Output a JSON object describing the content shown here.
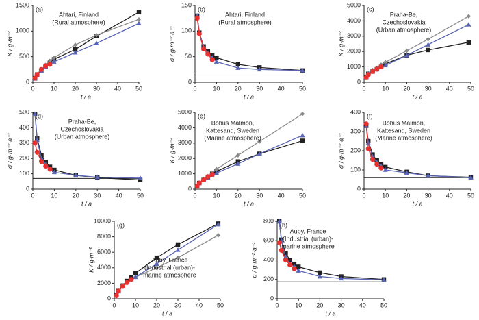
{
  "chart_data": [
    {
      "type": "line",
      "panel": "(a)",
      "annotation": [
        "Ahtari, Finland",
        "(Rural atmosphere)"
      ],
      "ylabel": "K / g·m⁻²",
      "xlabel": "t / a",
      "xlim": [
        0,
        50
      ],
      "xticks": [
        0,
        10,
        20,
        30,
        40,
        50
      ],
      "ylim": [
        0,
        1500
      ],
      "yticks": [
        0,
        500,
        1000,
        1500
      ],
      "series": [
        {
          "color": "#222222",
          "marker": "square",
          "x": [
            1,
            2,
            4,
            6,
            8,
            10,
            20,
            30,
            50
          ],
          "values": [
            80,
            150,
            230,
            310,
            380,
            450,
            640,
            900,
            1370
          ]
        },
        {
          "color": "#8a8a8a",
          "marker": "diamond",
          "x": [
            1,
            2,
            4,
            6,
            8,
            10,
            20,
            30,
            50
          ],
          "values": [
            80,
            160,
            250,
            340,
            420,
            480,
            730,
            920,
            1230
          ]
        },
        {
          "color": "#5a64b4",
          "marker": "triangle",
          "x": [
            1,
            2,
            4,
            6,
            8,
            10,
            20,
            30,
            50
          ],
          "values": [
            70,
            140,
            220,
            300,
            360,
            400,
            580,
            760,
            1150
          ]
        },
        {
          "color": "#e8312f",
          "marker": "circle",
          "x": [
            1,
            2,
            4,
            6,
            8
          ],
          "values": [
            80,
            150,
            250,
            320,
            350
          ]
        }
      ]
    },
    {
      "type": "line",
      "panel": "(b)",
      "annotation": [
        "Ahtari, Finland",
        "(Rural atmosphere)"
      ],
      "ylabel": "σ / g·m⁻²·a⁻¹",
      "xlabel": "t / a",
      "xlim": [
        0,
        50
      ],
      "xticks": [
        0,
        10,
        20,
        30,
        40,
        50
      ],
      "ylim": [
        0,
        150
      ],
      "yticks": [
        0,
        50,
        100,
        150
      ],
      "hline": 18,
      "series": [
        {
          "color": "#222222",
          "marker": "square",
          "x": [
            1,
            2,
            4,
            6,
            8,
            10,
            20,
            30,
            50
          ],
          "values": [
            130,
            97,
            70,
            60,
            52,
            48,
            35,
            29,
            23
          ]
        },
        {
          "color": "#5a64b4",
          "marker": "triangle",
          "x": [
            1,
            2,
            4,
            6,
            8,
            10,
            20,
            30,
            50
          ],
          "values": [
            130,
            97,
            68,
            57,
            48,
            40,
            28,
            25,
            23
          ]
        },
        {
          "color": "#e8312f",
          "marker": "circle",
          "x": [
            1,
            2,
            4,
            6,
            8
          ],
          "values": [
            125,
            95,
            65,
            55,
            44
          ]
        }
      ]
    },
    {
      "type": "line",
      "panel": "(c)",
      "annotation": [
        "Praha-Be,",
        "Czechoslovakia",
        "(Urban atmosphere)"
      ],
      "ylabel": "K / g·m⁻²",
      "xlabel": "t / a",
      "xlim": [
        0,
        50
      ],
      "xticks": [
        0,
        10,
        20,
        30,
        40,
        50
      ],
      "ylim": [
        0,
        5000
      ],
      "yticks": [
        0,
        1000,
        2000,
        3000,
        4000,
        5000
      ],
      "series": [
        {
          "color": "#222222",
          "marker": "square",
          "x": [
            1,
            2,
            4,
            6,
            8,
            10,
            20,
            30,
            49
          ],
          "values": [
            300,
            550,
            700,
            850,
            1000,
            1200,
            1750,
            2100,
            2600
          ]
        },
        {
          "color": "#8a8a8a",
          "marker": "diamond",
          "x": [
            1,
            2,
            4,
            6,
            8,
            10,
            20,
            30,
            49
          ],
          "values": [
            350,
            600,
            800,
            950,
            1150,
            1300,
            2050,
            2800,
            4300
          ]
        },
        {
          "color": "#5a64b4",
          "marker": "triangle",
          "x": [
            1,
            2,
            4,
            6,
            8,
            10,
            20,
            30,
            49
          ],
          "values": [
            300,
            550,
            720,
            880,
            1000,
            1100,
            1750,
            2450,
            3750
          ]
        },
        {
          "color": "#e8312f",
          "marker": "circle",
          "x": [
            1,
            2,
            4,
            6,
            8
          ],
          "values": [
            300,
            500,
            700,
            850,
            1000
          ]
        }
      ]
    },
    {
      "type": "line",
      "panel": "(d)",
      "annotation": [
        "Praha-Be,",
        "Czechoslovakia",
        "(Urban atmosphere)"
      ],
      "ylabel": "σ / g·m⁻²·a⁻¹",
      "xlabel": "t / a",
      "xlim": [
        0,
        50
      ],
      "xticks": [
        0,
        10,
        20,
        30,
        40,
        50
      ],
      "ylim": [
        0,
        500
      ],
      "yticks": [
        0,
        100,
        200,
        300,
        400,
        500
      ],
      "hline": 70,
      "series": [
        {
          "color": "#222222",
          "marker": "square",
          "x": [
            1,
            2,
            4,
            6,
            8,
            10,
            20,
            30,
            50
          ],
          "values": [
            490,
            330,
            220,
            175,
            145,
            125,
            90,
            75,
            60
          ]
        },
        {
          "color": "#5a64b4",
          "marker": "triangle",
          "x": [
            1,
            2,
            4,
            6,
            8,
            10,
            20,
            30,
            50
          ],
          "values": [
            490,
            320,
            200,
            160,
            130,
            110,
            90,
            78,
            72
          ]
        },
        {
          "color": "#e8312f",
          "marker": "circle",
          "x": [
            1,
            2,
            4,
            6,
            8
          ],
          "values": [
            300,
            240,
            180,
            150,
            130
          ]
        }
      ]
    },
    {
      "type": "line",
      "panel": "(e)",
      "annotation": [
        "Bohus Malmon,",
        "Kattesand, Sweden",
        "(Marine atmosphere)"
      ],
      "ylabel": "K / g·m⁻²",
      "xlabel": "t / a",
      "xlim": [
        0,
        50
      ],
      "xticks": [
        0,
        10,
        20,
        30,
        40,
        50
      ],
      "ylim": [
        0,
        5000
      ],
      "yticks": [
        0,
        1000,
        2000,
        3000,
        4000,
        5000
      ],
      "series": [
        {
          "color": "#222222",
          "marker": "square",
          "x": [
            1,
            2,
            4,
            6,
            8,
            10,
            20,
            30,
            50
          ],
          "values": [
            200,
            400,
            600,
            800,
            1000,
            1150,
            1800,
            2300,
            3150
          ]
        },
        {
          "color": "#8a8a8a",
          "marker": "diamond",
          "x": [
            1,
            2,
            4,
            6,
            8,
            10,
            20,
            30,
            50
          ],
          "values": [
            220,
            420,
            650,
            850,
            1050,
            1300,
            2200,
            3100,
            4900
          ]
        },
        {
          "color": "#5a64b4",
          "marker": "triangle",
          "x": [
            1,
            2,
            4,
            6,
            8,
            10,
            20,
            30,
            50
          ],
          "values": [
            200,
            380,
            580,
            750,
            900,
            1050,
            1650,
            2300,
            3500
          ]
        },
        {
          "color": "#e8312f",
          "marker": "circle",
          "x": [
            1,
            2,
            4,
            6,
            8
          ],
          "values": [
            200,
            400,
            600,
            800,
            950
          ]
        }
      ]
    },
    {
      "type": "line",
      "panel": "(f)",
      "annotation": [
        "Bohus Malmon,",
        "Kattesand, Sweden",
        "(Marine atmosphere)"
      ],
      "ylabel": "σ / g·m⁻²·a⁻¹",
      "xlabel": "t / a",
      "xlim": [
        0,
        50
      ],
      "xticks": [
        0,
        10,
        20,
        30,
        40,
        50
      ],
      "ylim": [
        0,
        400
      ],
      "yticks": [
        0,
        100,
        200,
        300,
        400
      ],
      "hline": 60,
      "series": [
        {
          "color": "#222222",
          "marker": "square",
          "x": [
            1,
            2,
            4,
            6,
            8,
            10,
            20,
            30,
            50
          ],
          "values": [
            330,
            250,
            180,
            150,
            130,
            115,
            90,
            70,
            62
          ]
        },
        {
          "color": "#5a64b4",
          "marker": "triangle",
          "x": [
            1,
            2,
            4,
            6,
            8,
            10,
            20,
            30,
            50
          ],
          "values": [
            330,
            240,
            170,
            140,
            120,
            100,
            85,
            70,
            60
          ]
        },
        {
          "color": "#e8312f",
          "marker": "circle",
          "x": [
            1,
            2,
            4,
            6,
            8
          ],
          "values": [
            340,
            210,
            155,
            130,
            110
          ]
        }
      ]
    },
    {
      "type": "line",
      "panel": "(g)",
      "annotation": [
        "Auby, France",
        "(Industrial (urban)-",
        "marine atmosphere"
      ],
      "ylabel": "K / g·m⁻²",
      "xlabel": "t / a",
      "xlim": [
        0,
        50
      ],
      "xticks": [
        0,
        10,
        20,
        30,
        40,
        50
      ],
      "ylim": [
        0,
        10000
      ],
      "yticks": [
        0,
        2000,
        4000,
        6000,
        8000,
        10000
      ],
      "series": [
        {
          "color": "#222222",
          "marker": "square",
          "x": [
            1,
            2,
            4,
            6,
            8,
            10,
            20,
            30,
            49
          ],
          "values": [
            500,
            1000,
            1700,
            2300,
            2800,
            3300,
            5300,
            7000,
            9700
          ]
        },
        {
          "color": "#8a8a8a",
          "marker": "diamond",
          "x": [
            1,
            2,
            4,
            6,
            8,
            10,
            20,
            30,
            49
          ],
          "values": [
            450,
            950,
            1600,
            2000,
            2400,
            2800,
            4000,
            5300,
            8200
          ]
        },
        {
          "color": "#5a64b4",
          "marker": "triangle",
          "x": [
            1,
            2,
            4,
            6,
            8,
            10,
            20,
            30,
            49
          ],
          "values": [
            450,
            950,
            1600,
            2100,
            2500,
            2800,
            4500,
            6300,
            9600
          ]
        },
        {
          "color": "#e8312f",
          "marker": "circle",
          "x": [
            1,
            2,
            4,
            6,
            8
          ],
          "values": [
            400,
            1000,
            1600,
            2100,
            2500
          ]
        }
      ]
    },
    {
      "type": "line",
      "panel": "(h)",
      "annotation": [
        "Auby, France",
        "(Industrial (urban)-",
        "marine atmosphere"
      ],
      "ylabel": "σ / g·m⁻²·a⁻¹",
      "xlabel": "t / a",
      "xlim": [
        0,
        50
      ],
      "xticks": [
        0,
        10,
        20,
        30,
        40,
        50
      ],
      "ylim": [
        0,
        800
      ],
      "yticks": [
        0,
        200,
        400,
        600,
        800
      ],
      "hline": 175,
      "series": [
        {
          "color": "#222222",
          "marker": "square",
          "x": [
            1,
            2,
            4,
            6,
            8,
            10,
            20,
            30,
            50
          ],
          "values": [
            800,
            610,
            470,
            400,
            360,
            330,
            270,
            230,
            200
          ]
        },
        {
          "color": "#5a64b4",
          "marker": "triangle",
          "x": [
            1,
            2,
            4,
            6,
            8,
            10,
            20,
            30,
            50
          ],
          "values": [
            800,
            600,
            430,
            360,
            330,
            290,
            230,
            210,
            195
          ]
        },
        {
          "color": "#e8312f",
          "marker": "circle",
          "x": [
            1,
            2,
            4,
            6,
            8
          ],
          "values": [
            580,
            500,
            400,
            350,
            310
          ]
        }
      ]
    }
  ]
}
